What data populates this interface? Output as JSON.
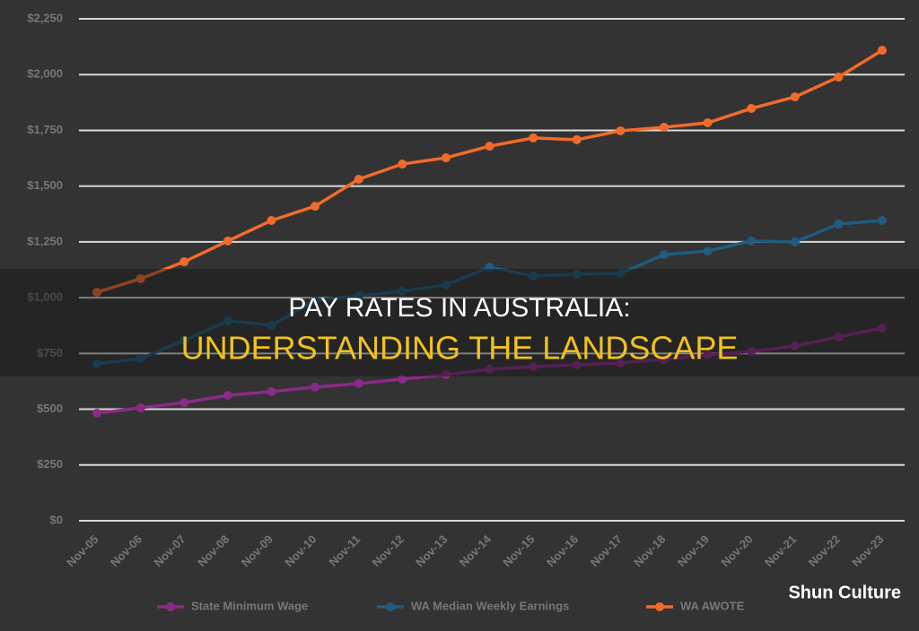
{
  "chart_data": {
    "type": "line",
    "categories": [
      "Nov-05",
      "Nov-06",
      "Nov-07",
      "Nov-08",
      "Nov-09",
      "Nov-10",
      "Nov-11",
      "Nov-12",
      "Nov-13",
      "Nov-14",
      "Nov-15",
      "Nov-16",
      "Nov-17",
      "Nov-18",
      "Nov-19",
      "Nov-20",
      "Nov-21",
      "Nov-22",
      "Nov-23"
    ],
    "series": [
      {
        "name": "State Minimum Wage",
        "color": "#8b2a87",
        "values": [
          482,
          506,
          530,
          562,
          579,
          599,
          615,
          635,
          655,
          679,
          691,
          699,
          707,
          723,
          743,
          759,
          783,
          824,
          864
        ]
      },
      {
        "name": "WA Median Weekly Earnings",
        "color": "#1f5c7e",
        "values": [
          703,
          727,
          808,
          896,
          876,
          988,
          1008,
          1029,
          1057,
          1137,
          1097,
          1105,
          1109,
          1193,
          1209,
          1254,
          1250,
          1330,
          1346
        ]
      },
      {
        "name": "WA AWOTE",
        "color": "#f26b2a",
        "values": [
          1024,
          1085,
          1161,
          1254,
          1346,
          1410,
          1531,
          1599,
          1627,
          1679,
          1716,
          1708,
          1748,
          1764,
          1784,
          1848,
          1900,
          1989,
          2109
        ]
      }
    ],
    "ylim": [
      0,
      2250
    ],
    "yticks": [
      {
        "value": 0,
        "label": "$0"
      },
      {
        "value": 250,
        "label": "$250"
      },
      {
        "value": 500,
        "label": "$500"
      },
      {
        "value": 750,
        "label": "$750"
      },
      {
        "value": 1000,
        "label": "$1,000"
      },
      {
        "value": 1250,
        "label": "$1,250"
      },
      {
        "value": 1500,
        "label": "$1,500"
      },
      {
        "value": 1750,
        "label": "$1,750"
      },
      {
        "value": 2000,
        "label": "$2,000"
      },
      {
        "value": 2250,
        "label": "$2,250"
      }
    ],
    "grid": true,
    "legend": "bottom"
  },
  "overlay": {
    "title": "PAY RATES IN AUSTRALIA:",
    "subtitle": "UNDERSTANDING THE LANDSCAPE"
  },
  "watermark": "Shun Culture"
}
